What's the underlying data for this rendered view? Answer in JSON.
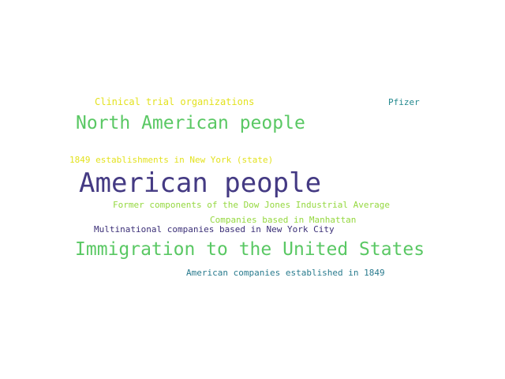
{
  "word_cloud": {
    "words": [
      {
        "text": "Clinical trial organizations",
        "color": "#e3e21f"
      },
      {
        "text": "Pfizer",
        "color": "#23898e"
      },
      {
        "text": "North American people",
        "color": "#5ac864"
      },
      {
        "text": "1849 establishments in New York (state)",
        "color": "#e3e21f"
      },
      {
        "text": "American people",
        "color": "#443a83"
      },
      {
        "text": "Former components of the Dow Jones Industrial Average",
        "color": "#95d840"
      },
      {
        "text": "Companies based in Manhattan",
        "color": "#95d840"
      },
      {
        "text": "Multinational companies based in New York City",
        "color": "#3b2f77"
      },
      {
        "text": "Immigration to the United States",
        "color": "#5ac864"
      },
      {
        "text": "American companies established in 1849",
        "color": "#2a7b8e"
      }
    ]
  }
}
